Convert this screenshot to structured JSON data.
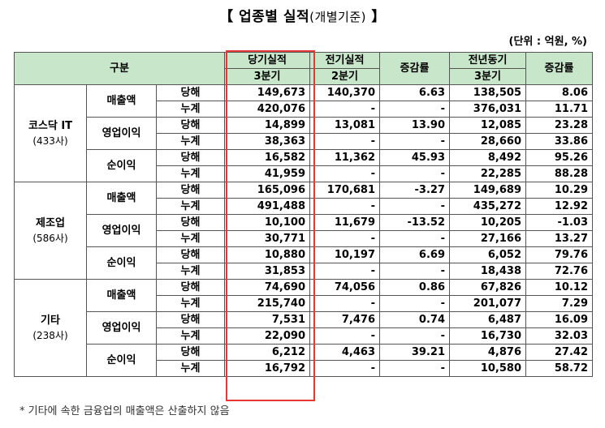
{
  "title": {
    "main": "【 업종별 실적",
    "sub": "(개별기준)",
    "end": " 】"
  },
  "unit": "(단위 : 억원, %)",
  "headers": {
    "gubun": "구분",
    "current": "당기실적",
    "current_sub": "3분기",
    "prev": "전기실적",
    "prev_sub": "2분기",
    "rate1": "증감률",
    "lastyear": "전년동기",
    "lastyear_sub": "3분기",
    "rate2": "증감률"
  },
  "groups": [
    {
      "name": "코스닥 IT",
      "count": "(433사)",
      "metrics": [
        {
          "label": "매출액",
          "rows": [
            {
              "p": "당해",
              "cur": "149,673",
              "prev": "140,370",
              "r1": "6.63",
              "ly": "138,505",
              "r2": "8.06"
            },
            {
              "p": "누계",
              "cur": "420,076",
              "prev": "-",
              "r1": "-",
              "ly": "376,031",
              "r2": "11.71"
            }
          ]
        },
        {
          "label": "영업이익",
          "rows": [
            {
              "p": "당해",
              "cur": "14,899",
              "prev": "13,081",
              "r1": "13.90",
              "ly": "12,085",
              "r2": "23.28"
            },
            {
              "p": "누계",
              "cur": "38,363",
              "prev": "-",
              "r1": "-",
              "ly": "28,660",
              "r2": "33.86"
            }
          ]
        },
        {
          "label": "순이익",
          "rows": [
            {
              "p": "당해",
              "cur": "16,582",
              "prev": "11,362",
              "r1": "45.93",
              "ly": "8,492",
              "r2": "95.26"
            },
            {
              "p": "누계",
              "cur": "41,959",
              "prev": "-",
              "r1": "-",
              "ly": "22,285",
              "r2": "88.28"
            }
          ]
        }
      ]
    },
    {
      "name": "제조업",
      "count": "(586사)",
      "metrics": [
        {
          "label": "매출액",
          "rows": [
            {
              "p": "당해",
              "cur": "165,096",
              "prev": "170,681",
              "r1": "-3.27",
              "ly": "149,689",
              "r2": "10.29"
            },
            {
              "p": "누계",
              "cur": "491,488",
              "prev": "-",
              "r1": "-",
              "ly": "435,272",
              "r2": "12.92"
            }
          ]
        },
        {
          "label": "영업이익",
          "rows": [
            {
              "p": "당해",
              "cur": "10,100",
              "prev": "11,679",
              "r1": "-13.52",
              "ly": "10,205",
              "r2": "-1.03"
            },
            {
              "p": "누계",
              "cur": "30,771",
              "prev": "-",
              "r1": "-",
              "ly": "27,166",
              "r2": "13.27"
            }
          ]
        },
        {
          "label": "순이익",
          "rows": [
            {
              "p": "당해",
              "cur": "10,880",
              "prev": "10,197",
              "r1": "6.69",
              "ly": "6,052",
              "r2": "79.76"
            },
            {
              "p": "누계",
              "cur": "31,853",
              "prev": "-",
              "r1": "-",
              "ly": "18,438",
              "r2": "72.76"
            }
          ]
        }
      ]
    },
    {
      "name": "기타",
      "count": "(238사)",
      "metrics": [
        {
          "label": "매출액",
          "rows": [
            {
              "p": "당해",
              "cur": "74,690",
              "prev": "74,056",
              "r1": "0.86",
              "ly": "67,826",
              "r2": "10.12"
            },
            {
              "p": "누계",
              "cur": "215,740",
              "prev": "-",
              "r1": "-",
              "ly": "201,077",
              "r2": "7.29"
            }
          ]
        },
        {
          "label": "영업이익",
          "rows": [
            {
              "p": "당해",
              "cur": "7,531",
              "prev": "7,476",
              "r1": "0.74",
              "ly": "6,487",
              "r2": "16.09"
            },
            {
              "p": "누계",
              "cur": "22,090",
              "prev": "-",
              "r1": "-",
              "ly": "16,730",
              "r2": "32.03"
            }
          ]
        },
        {
          "label": "순이익",
          "rows": [
            {
              "p": "당해",
              "cur": "6,212",
              "prev": "4,463",
              "r1": "39.21",
              "ly": "4,876",
              "r2": "27.42"
            },
            {
              "p": "누계",
              "cur": "16,792",
              "prev": "-",
              "r1": "-",
              "ly": "10,580",
              "r2": "58.72"
            }
          ]
        }
      ]
    }
  ],
  "footnote": "* 기타에 속한 금융업의 매출액은 산출하지 않음",
  "colors": {
    "header_bg": "#c8e6c9",
    "highlight_border": "#e53935"
  }
}
